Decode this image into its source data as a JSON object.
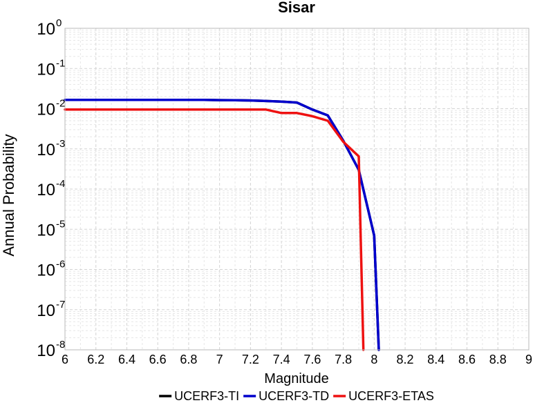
{
  "chart_data": {
    "type": "line",
    "title": "Sisar",
    "xlabel": "Magnitude",
    "ylabel": "Annual Probability",
    "xlim": [
      6,
      9
    ],
    "ylim": [
      1e-08,
      1
    ],
    "yscale": "log",
    "grid": true,
    "legend_position": "bottom",
    "x_ticks": [
      "6",
      "6.2",
      "6.4",
      "6.6",
      "6.8",
      "7",
      "7.2",
      "7.4",
      "7.6",
      "7.8",
      "8",
      "8.2",
      "8.4",
      "8.6",
      "8.8",
      "9"
    ],
    "y_ticks": [
      {
        "base": "10",
        "exp": "0",
        "value": 1
      },
      {
        "base": "10",
        "exp": "-1",
        "value": 0.1
      },
      {
        "base": "10",
        "exp": "-2",
        "value": 0.01
      },
      {
        "base": "10",
        "exp": "-3",
        "value": 0.001
      },
      {
        "base": "10",
        "exp": "-4",
        "value": 0.0001
      },
      {
        "base": "10",
        "exp": "-5",
        "value": 1e-05
      },
      {
        "base": "10",
        "exp": "-6",
        "value": 1e-06
      },
      {
        "base": "10",
        "exp": "-7",
        "value": 1e-07
      },
      {
        "base": "10",
        "exp": "-8",
        "value": 1e-08
      }
    ],
    "series": [
      {
        "name": "UCERF3-TI",
        "color": "#000000",
        "x": [
          6.0,
          6.1,
          6.2,
          6.3,
          6.4,
          6.5,
          6.6,
          6.7,
          6.8,
          6.9,
          7.0,
          7.1,
          7.2,
          7.3,
          7.4,
          7.5,
          7.6,
          7.7,
          7.8,
          7.9,
          8.0,
          8.03
        ],
        "y": [
          0.0165,
          0.0165,
          0.0165,
          0.0165,
          0.0165,
          0.0165,
          0.0165,
          0.0165,
          0.0165,
          0.0165,
          0.0163,
          0.0162,
          0.016,
          0.0155,
          0.015,
          0.0142,
          0.0095,
          0.0068,
          0.0016,
          0.0003,
          7e-06,
          1e-08
        ]
      },
      {
        "name": "UCERF3-TD",
        "color": "#0000cc",
        "x": [
          6.0,
          6.1,
          6.2,
          6.3,
          6.4,
          6.5,
          6.6,
          6.7,
          6.8,
          6.9,
          7.0,
          7.1,
          7.2,
          7.3,
          7.4,
          7.5,
          7.6,
          7.7,
          7.8,
          7.9,
          8.0,
          8.03
        ],
        "y": [
          0.0165,
          0.0165,
          0.0165,
          0.0165,
          0.0165,
          0.0165,
          0.0165,
          0.0165,
          0.0165,
          0.0165,
          0.0163,
          0.0162,
          0.016,
          0.0155,
          0.015,
          0.0142,
          0.0095,
          0.0068,
          0.0016,
          0.0003,
          7e-06,
          1e-08
        ]
      },
      {
        "name": "UCERF3-ETAS",
        "color": "#ee1111",
        "x": [
          6.0,
          6.1,
          6.2,
          6.3,
          6.4,
          6.5,
          6.6,
          6.7,
          6.8,
          6.9,
          7.0,
          7.1,
          7.2,
          7.3,
          7.4,
          7.5,
          7.6,
          7.7,
          7.8,
          7.9,
          7.93
        ],
        "y": [
          0.0095,
          0.0095,
          0.0095,
          0.0095,
          0.0095,
          0.0095,
          0.0095,
          0.0095,
          0.0095,
          0.0095,
          0.0095,
          0.0095,
          0.0095,
          0.0095,
          0.0078,
          0.0078,
          0.0065,
          0.005,
          0.0015,
          0.00065,
          1e-08
        ]
      }
    ]
  }
}
